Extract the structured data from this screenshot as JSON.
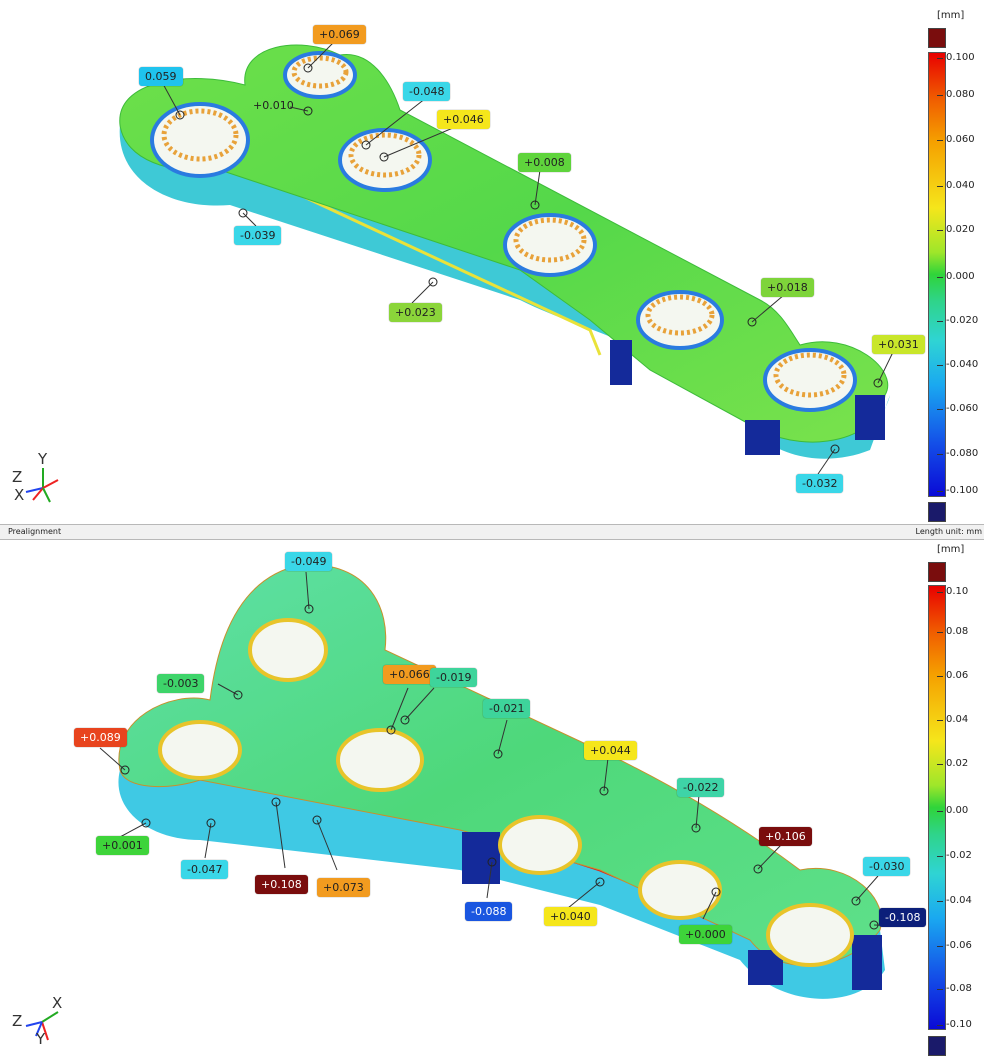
{
  "top_view": {
    "labels": [
      {
        "text": "+0.069",
        "bg": "#f29b1f"
      },
      {
        "text": "0.059",
        "bg": "#1fc3ee"
      },
      {
        "text": "+0.010",
        "bg": "#7ad13a"
      },
      {
        "text": "-0.048",
        "bg": "#3ad7e8"
      },
      {
        "text": "+0.046",
        "bg": "#f5e61b"
      },
      {
        "text": "+0.008",
        "bg": "#5fd43c"
      },
      {
        "text": "-0.039",
        "bg": "#3ad7e8"
      },
      {
        "text": "+0.023",
        "bg": "#8bd53a"
      },
      {
        "text": "+0.018",
        "bg": "#7ed43a"
      },
      {
        "text": "+0.031",
        "bg": "#c9e62a"
      },
      {
        "text": "-0.032",
        "bg": "#3ad7e8"
      }
    ],
    "scale": {
      "unit": "[mm]",
      "ticks": [
        "0.100",
        "0.080",
        "0.060",
        "0.040",
        "0.020",
        "0.000",
        "-0.020",
        "-0.040",
        "-0.060",
        "-0.080",
        "-0.100"
      ]
    },
    "axis": {
      "a": "Y",
      "b": "Z",
      "c": "X"
    }
  },
  "statusbar": {
    "left": "Prealignment",
    "right": "Length unit: mm"
  },
  "bottom_view": {
    "labels": [
      {
        "text": "-0.049",
        "bg": "#3ad7e8"
      },
      {
        "text": "-0.003",
        "bg": "#3ed46a"
      },
      {
        "text": "+0.066",
        "bg": "#f29b1f"
      },
      {
        "text": "-0.019",
        "bg": "#3ed49b"
      },
      {
        "text": "-0.021",
        "bg": "#3ed49b"
      },
      {
        "text": "+0.089",
        "bg": "#e8441e"
      },
      {
        "text": "+0.044",
        "bg": "#f5e61b"
      },
      {
        "text": "-0.022",
        "bg": "#3ed4a7"
      },
      {
        "text": "+0.106",
        "bg": "#7a0d0d"
      },
      {
        "text": "-0.030",
        "bg": "#3ad7e8"
      },
      {
        "text": "-0.108",
        "bg": "#0c1f7a"
      },
      {
        "text": "+0.001",
        "bg": "#3ed43a"
      },
      {
        "text": "-0.047",
        "bg": "#3ad7e8"
      },
      {
        "text": "+0.108",
        "bg": "#7a0d0d"
      },
      {
        "text": "+0.073",
        "bg": "#f29b1f"
      },
      {
        "text": "-0.088",
        "bg": "#1a56e0"
      },
      {
        "text": "+0.040",
        "bg": "#f5e61b"
      },
      {
        "text": "+0.000",
        "bg": "#3ed43a"
      }
    ],
    "scale": {
      "unit": "[mm]",
      "ticks": [
        "0.10",
        "0.08",
        "0.06",
        "0.04",
        "0.02",
        "0.00",
        "-0.02",
        "-0.04",
        "-0.06",
        "-0.08",
        "-0.10"
      ]
    },
    "axis": {
      "a": "X",
      "b": "Z",
      "c": "Y"
    }
  }
}
